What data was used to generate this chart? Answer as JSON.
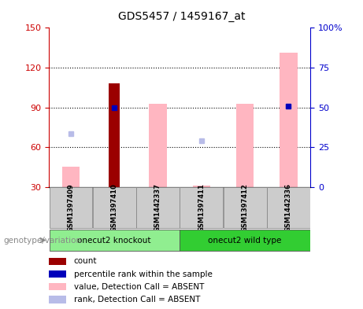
{
  "title": "GDS5457 / 1459167_at",
  "samples": [
    "GSM1397409",
    "GSM1397410",
    "GSM1442337",
    "GSM1397411",
    "GSM1397412",
    "GSM1442336"
  ],
  "groups": [
    {
      "label": "onecut2 knockout",
      "color": "#90ee90",
      "start": 0,
      "end": 2
    },
    {
      "label": "onecut2 wild type",
      "color": "#32cd32",
      "start": 3,
      "end": 5
    }
  ],
  "bar_bottom": 30,
  "ylim_left": [
    30,
    150
  ],
  "ylim_right": [
    0,
    100
  ],
  "yticks_left": [
    30,
    60,
    90,
    120,
    150
  ],
  "yticks_right": [
    0,
    25,
    50,
    75,
    100
  ],
  "yticklabels_right": [
    "0",
    "25",
    "50",
    "75",
    "100%"
  ],
  "count_values": [
    null,
    108,
    null,
    null,
    null,
    null
  ],
  "count_color": "#9b0000",
  "percentile_rank_values": [
    null,
    50,
    null,
    null,
    null,
    51
  ],
  "percentile_rank_color": "#0000bb",
  "value_absent_values": [
    45,
    null,
    93,
    31,
    93,
    131
  ],
  "value_absent_color": "#ffb6c1",
  "rank_absent_values": [
    70,
    null,
    null,
    65,
    null,
    91
  ],
  "rank_absent_color": "#b8bce8",
  "ylabel_left_color": "#cc0000",
  "ylabel_right_color": "#0000cc",
  "legend_items": [
    {
      "color": "#9b0000",
      "label": "count"
    },
    {
      "color": "#0000bb",
      "label": "percentile rank within the sample"
    },
    {
      "color": "#ffb6c1",
      "label": "value, Detection Call = ABSENT"
    },
    {
      "color": "#b8bce8",
      "label": "rank, Detection Call = ABSENT"
    }
  ],
  "genotype_label": "genotype/variation"
}
